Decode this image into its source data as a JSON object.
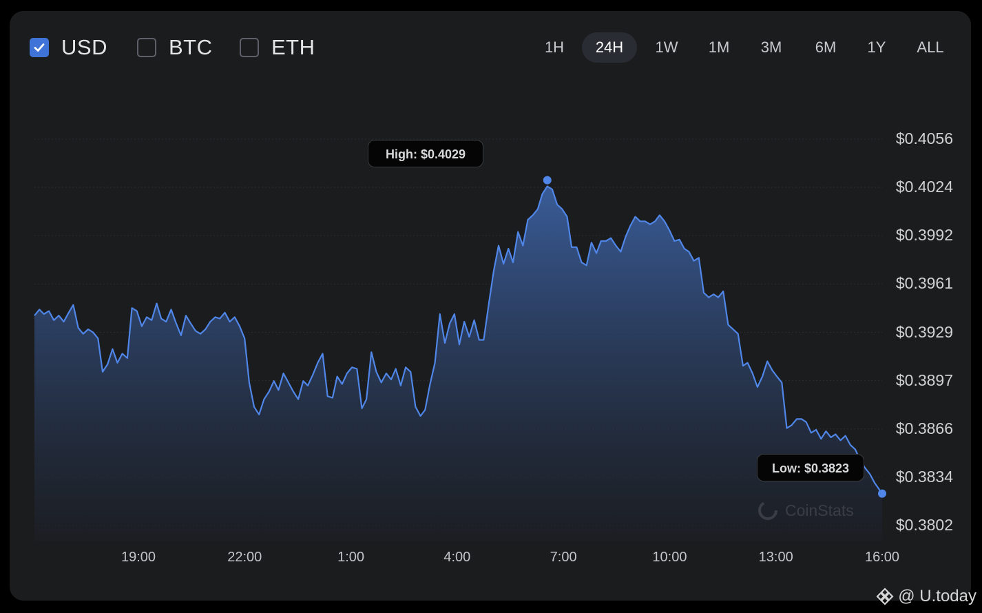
{
  "currencies": [
    {
      "label": "USD",
      "checked": true
    },
    {
      "label": "BTC",
      "checked": false
    },
    {
      "label": "ETH",
      "checked": false
    }
  ],
  "ranges": [
    {
      "label": "1H"
    },
    {
      "label": "24H",
      "active": true
    },
    {
      "label": "1W"
    },
    {
      "label": "1M"
    },
    {
      "label": "3M"
    },
    {
      "label": "6M"
    },
    {
      "label": "1Y"
    },
    {
      "label": "ALL"
    }
  ],
  "annotations": {
    "high": "High: $0.4029",
    "low": "Low: $0.3823"
  },
  "watermark": "CoinStats",
  "footer": "@ U.today",
  "colors": {
    "line": "#4f86e8",
    "fill_top": "#3b5f9e",
    "fill_bottom": "#1c1f26"
  },
  "chart_data": {
    "type": "area",
    "title": "",
    "xlabel": "",
    "ylabel": "",
    "x_ticks": [
      "19:00",
      "22:00",
      "1:00",
      "4:00",
      "7:00",
      "10:00",
      "13:00",
      "16:00"
    ],
    "y_ticks": [
      "$0.4056",
      "$0.4024",
      "$0.3992",
      "$0.3961",
      "$0.3929",
      "$0.3897",
      "$0.3866",
      "$0.3834",
      "$0.3802"
    ],
    "x_range_hours": [
      16.0,
      40.0
    ],
    "ylim": [
      0.3802,
      0.4056
    ],
    "high": 0.4029,
    "low": 0.3823,
    "series": [
      {
        "x": [
          16.0,
          16.14,
          16.27,
          16.41,
          16.55,
          16.69,
          16.83,
          16.97,
          17.1,
          17.24,
          17.38,
          17.52,
          17.66,
          17.8,
          17.93,
          18.07,
          18.21,
          18.35,
          18.49,
          18.63,
          18.76,
          18.9,
          19.04,
          19.18,
          19.32,
          19.46,
          19.59,
          19.73,
          19.87,
          20.01,
          20.15,
          20.29,
          20.42,
          20.56,
          20.7,
          20.84,
          20.98,
          21.12,
          21.25,
          21.39,
          21.53,
          21.67,
          21.81,
          21.95,
          22.08,
          22.22,
          22.36,
          22.5,
          22.64,
          22.78,
          22.91,
          23.05,
          23.19,
          23.33,
          23.47,
          23.61,
          23.74,
          23.88,
          24.02,
          24.16,
          24.3,
          24.44,
          24.57,
          24.71,
          24.85,
          24.99,
          25.13,
          25.27,
          25.4,
          25.54,
          25.68,
          25.82,
          25.96,
          26.1,
          26.23,
          26.37,
          26.51,
          26.65,
          26.79,
          26.93,
          27.06,
          27.2,
          27.34,
          27.48,
          27.62,
          27.76,
          27.89,
          28.03,
          28.17,
          28.31,
          28.45,
          28.59,
          28.72,
          28.86,
          29.0,
          29.14,
          29.28,
          29.42,
          29.55,
          29.69,
          29.83,
          29.97,
          30.11,
          30.25,
          30.38,
          30.52,
          30.66,
          30.8,
          30.94,
          31.08,
          31.21,
          31.35,
          31.49,
          31.63,
          31.77,
          31.91,
          32.04,
          32.18,
          32.32,
          32.46,
          32.6,
          32.74,
          32.87,
          33.01,
          33.15,
          33.29,
          33.43,
          33.57,
          33.7,
          33.84,
          33.98,
          34.12,
          34.26,
          34.4,
          34.53,
          34.67,
          34.81,
          34.95,
          35.09,
          35.23,
          35.36,
          35.5,
          35.64,
          35.78,
          35.92,
          36.06,
          36.19,
          36.33,
          36.47,
          36.61,
          36.75,
          36.89,
          37.02,
          37.16,
          37.3,
          37.44,
          37.58,
          37.72,
          37.85,
          37.99,
          38.13,
          38.27,
          38.41,
          38.55,
          38.68,
          38.82,
          38.96,
          39.1,
          39.24,
          39.38,
          39.51,
          39.65,
          39.79,
          40.0
        ],
        "values": [
          0.394,
          0.3944,
          0.3941,
          0.3943,
          0.3937,
          0.394,
          0.3936,
          0.3942,
          0.3947,
          0.3932,
          0.3928,
          0.3931,
          0.3929,
          0.3925,
          0.3903,
          0.3908,
          0.3918,
          0.3909,
          0.3915,
          0.3912,
          0.3945,
          0.3943,
          0.3933,
          0.3939,
          0.3937,
          0.3948,
          0.3938,
          0.3936,
          0.3944,
          0.3935,
          0.3927,
          0.394,
          0.3935,
          0.393,
          0.3928,
          0.3931,
          0.3936,
          0.3939,
          0.3938,
          0.3942,
          0.3936,
          0.3939,
          0.3933,
          0.3925,
          0.3896,
          0.388,
          0.3875,
          0.3885,
          0.389,
          0.3897,
          0.3891,
          0.3902,
          0.3896,
          0.389,
          0.3885,
          0.3897,
          0.3894,
          0.3901,
          0.3909,
          0.3915,
          0.3887,
          0.3886,
          0.39,
          0.3895,
          0.3902,
          0.3906,
          0.3905,
          0.3879,
          0.3885,
          0.3916,
          0.3903,
          0.3896,
          0.3902,
          0.3898,
          0.3905,
          0.3894,
          0.3906,
          0.3903,
          0.388,
          0.3874,
          0.3878,
          0.3895,
          0.3909,
          0.3941,
          0.3922,
          0.3935,
          0.3941,
          0.3921,
          0.3936,
          0.3926,
          0.3937,
          0.3924,
          0.3924,
          0.3947,
          0.3969,
          0.3986,
          0.3974,
          0.3984,
          0.3975,
          0.3995,
          0.3986,
          0.4003,
          0.4006,
          0.401,
          0.402,
          0.4025,
          0.4023,
          0.4013,
          0.401,
          0.4005,
          0.3985,
          0.3985,
          0.3975,
          0.3973,
          0.3988,
          0.3981,
          0.3989,
          0.3989,
          0.3991,
          0.3986,
          0.3982,
          0.3992,
          0.3999,
          0.4005,
          0.4002,
          0.4002,
          0.4,
          0.4002,
          0.4006,
          0.4002,
          0.3996,
          0.3989,
          0.399,
          0.3984,
          0.3982,
          0.3976,
          0.3978,
          0.3955,
          0.3952,
          0.3954,
          0.3952,
          0.3956,
          0.3934,
          0.3931,
          0.3928,
          0.3907,
          0.3909,
          0.3902,
          0.3893,
          0.39,
          0.391,
          0.3904,
          0.39,
          0.3896,
          0.3866,
          0.3868,
          0.3872,
          0.3872,
          0.387,
          0.3863,
          0.3865,
          0.3859,
          0.3864,
          0.386,
          0.3862,
          0.3858,
          0.3861,
          0.3855,
          0.3852,
          0.3845,
          0.384,
          0.3836,
          0.383,
          0.3823
        ]
      }
    ]
  }
}
